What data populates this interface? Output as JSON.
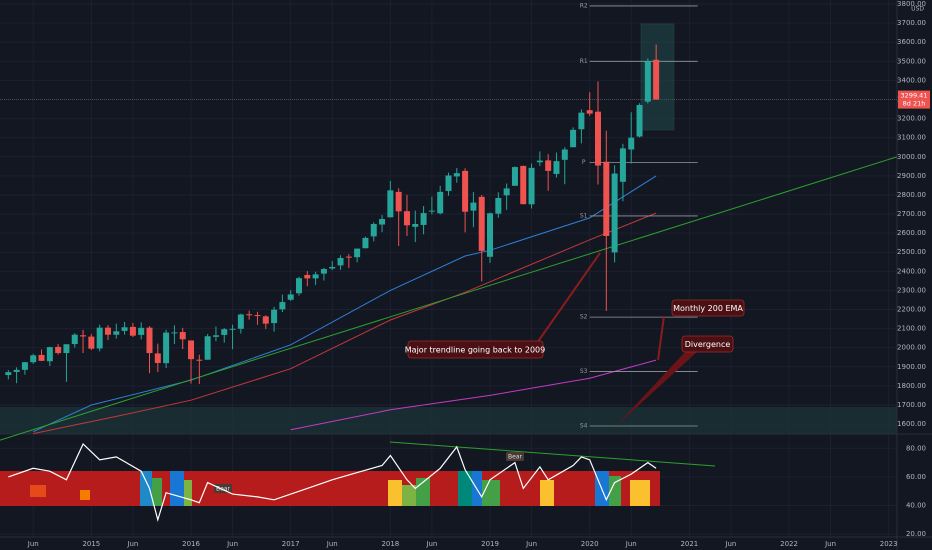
{
  "chart_data": [
    {
      "type": "candlestick",
      "currency": "USD",
      "countdown": "8d 21h",
      "last_price": {
        "value": 3299.41,
        "label": "3299.41"
      },
      "up_color": "#26a69a",
      "down_color": "#ef5350",
      "xlim": [
        "2014-02",
        "2023-02"
      ],
      "ylim": [
        1548,
        3821
      ],
      "yticks": [
        {
          "value": 1600,
          "label": "1600.00"
        },
        {
          "value": 1700,
          "label": "1700.00"
        },
        {
          "value": 1800,
          "label": "1800.00"
        },
        {
          "value": 1900,
          "label": "1900.00"
        },
        {
          "value": 2000,
          "label": "2000.00"
        },
        {
          "value": 2100,
          "label": "2100.00"
        },
        {
          "value": 2200,
          "label": "2200.00"
        },
        {
          "value": 2300,
          "label": "2300.00"
        },
        {
          "value": 2400,
          "label": "2400.00"
        },
        {
          "value": 2500,
          "label": "2500.00"
        },
        {
          "value": 2600,
          "label": "2600.00"
        },
        {
          "value": 2700,
          "label": "2700.00"
        },
        {
          "value": 2800,
          "label": "2800.00"
        },
        {
          "value": 2900,
          "label": "2900.00"
        },
        {
          "value": 3000,
          "label": "3000.00"
        },
        {
          "value": 3100,
          "label": "3100.00"
        },
        {
          "value": 3200,
          "label": "3200.00"
        },
        {
          "value": 3300,
          "label": "3300.00"
        },
        {
          "value": 3400,
          "label": "3400.00"
        },
        {
          "value": 3500,
          "label": "3500.00"
        },
        {
          "value": 3600,
          "label": "3600.00"
        },
        {
          "value": 3700,
          "label": "3700.00"
        },
        {
          "value": 3800,
          "label": "3800.00"
        }
      ],
      "xticks": [
        {
          "value": "2014-06",
          "label": "Jun"
        },
        {
          "value": "2015-01",
          "label": "2015"
        },
        {
          "value": "2015-06",
          "label": "Jun"
        },
        {
          "value": "2016-01",
          "label": "2016"
        },
        {
          "value": "2016-06",
          "label": "Jun"
        },
        {
          "value": "2017-01",
          "label": "2017"
        },
        {
          "value": "2017-06",
          "label": "Jun"
        },
        {
          "value": "2018-01",
          "label": "2018"
        },
        {
          "value": "2018-06",
          "label": "Jun"
        },
        {
          "value": "2019-01",
          "label": "2019"
        },
        {
          "value": "2019-06",
          "label": "Jun"
        },
        {
          "value": "2020-01",
          "label": "2020"
        },
        {
          "value": "2020-06",
          "label": "Jun"
        },
        {
          "value": "2021-01",
          "label": "2021"
        },
        {
          "value": "2021-06",
          "label": "Jun"
        },
        {
          "value": "2022-01",
          "label": "2022"
        },
        {
          "value": "2022-06",
          "label": "Jun"
        },
        {
          "value": "2023-01",
          "label": "2023"
        }
      ],
      "grid": true,
      "x": [
        "2014-03",
        "2014-04",
        "2014-05",
        "2014-06",
        "2014-07",
        "2014-08",
        "2014-09",
        "2014-10",
        "2014-11",
        "2014-12",
        "2015-01",
        "2015-02",
        "2015-03",
        "2015-04",
        "2015-05",
        "2015-06",
        "2015-07",
        "2015-08",
        "2015-09",
        "2015-10",
        "2015-11",
        "2015-12",
        "2016-01",
        "2016-02",
        "2016-03",
        "2016-04",
        "2016-05",
        "2016-06",
        "2016-07",
        "2016-08",
        "2016-09",
        "2016-10",
        "2016-11",
        "2016-12",
        "2017-01",
        "2017-02",
        "2017-03",
        "2017-04",
        "2017-05",
        "2017-06",
        "2017-07",
        "2017-08",
        "2017-09",
        "2017-10",
        "2017-11",
        "2017-12",
        "2018-01",
        "2018-02",
        "2018-03",
        "2018-04",
        "2018-05",
        "2018-06",
        "2018-07",
        "2018-08",
        "2018-09",
        "2018-10",
        "2018-11",
        "2018-12",
        "2019-01",
        "2019-02",
        "2019-03",
        "2019-04",
        "2019-05",
        "2019-06",
        "2019-07",
        "2019-08",
        "2019-09",
        "2019-10",
        "2019-11",
        "2019-12",
        "2020-01",
        "2020-02",
        "2020-03",
        "2020-04",
        "2020-05",
        "2020-06",
        "2020-07",
        "2020-08",
        "2020-09"
      ],
      "open": [
        1857,
        1873,
        1884,
        1924,
        1962,
        1929,
        2004,
        1972,
        2019,
        2065,
        2058,
        1996,
        2105,
        2068,
        2088,
        2109,
        2067,
        2105,
        1970,
        1919,
        2080,
        2082,
        2038,
        1937,
        1937,
        2057,
        2067,
        2094,
        2099,
        2175,
        2171,
        2164,
        2129,
        2201,
        2251,
        2285,
        2381,
        2363,
        2388,
        2415,
        2431,
        2477,
        2474,
        2521,
        2583,
        2645,
        2683,
        2816,
        2715,
        2633,
        2643,
        2718,
        2704,
        2821,
        2897,
        2926,
        2718,
        2790,
        2476,
        2702,
        2798,
        2848,
        2952,
        2751,
        2971,
        2981,
        2910,
        2984,
        3050,
        3144,
        3244,
        3236,
        2974,
        2499,
        2869,
        3038,
        3106,
        3289,
        3508
      ],
      "high": [
        1883,
        1897,
        1924,
        1968,
        1991,
        2005,
        2019,
        2018,
        2076,
        2093,
        2072,
        2120,
        2118,
        2126,
        2135,
        2130,
        2133,
        2113,
        2021,
        2094,
        2117,
        2104,
        2038,
        1963,
        2072,
        2111,
        2103,
        2121,
        2178,
        2194,
        2188,
        2170,
        2214,
        2278,
        2301,
        2371,
        2401,
        2398,
        2418,
        2454,
        2484,
        2491,
        2519,
        2582,
        2657,
        2695,
        2873,
        2835,
        2801,
        2718,
        2742,
        2791,
        2848,
        2917,
        2941,
        2940,
        2815,
        2800,
        2708,
        2814,
        2860,
        2949,
        2954,
        2964,
        3028,
        3014,
        3022,
        3050,
        3154,
        3248,
        3338,
        3394,
        3136,
        2955,
        3068,
        3233,
        3280,
        3515,
        3588
      ],
      "low": [
        1834,
        1814,
        1859,
        1915,
        1930,
        1904,
        1964,
        1821,
        2001,
        1972,
        1988,
        1981,
        2040,
        2048,
        2068,
        2056,
        2044,
        1867,
        1872,
        1893,
        2019,
        1993,
        1812,
        1810,
        1937,
        2034,
        2026,
        1992,
        2074,
        2147,
        2120,
        2098,
        2084,
        2187,
        2245,
        2272,
        2322,
        2329,
        2352,
        2406,
        2408,
        2417,
        2447,
        2520,
        2557,
        2605,
        2682,
        2533,
        2585,
        2553,
        2594,
        2698,
        2698,
        2796,
        2864,
        2604,
        2631,
        2347,
        2444,
        2681,
        2722,
        2848,
        2750,
        2729,
        2952,
        2822,
        2891,
        2856,
        3050,
        3070,
        3214,
        2855,
        2192,
        2447,
        2767,
        2965,
        3101,
        3279,
        3301
      ],
      "close": [
        1872,
        1884,
        1924,
        1960,
        1931,
        2003,
        1972,
        2018,
        2068,
        2059,
        1995,
        2105,
        2068,
        2086,
        2107,
        2063,
        2104,
        1972,
        1920,
        2079,
        2080,
        2044,
        1940,
        1932,
        2060,
        2065,
        2097,
        2099,
        2174,
        2171,
        2168,
        2126,
        2199,
        2239,
        2279,
        2364,
        2363,
        2384,
        2412,
        2423,
        2470,
        2472,
        2519,
        2575,
        2648,
        2674,
        2824,
        2714,
        2641,
        2648,
        2705,
        2718,
        2816,
        2902,
        2914,
        2712,
        2760,
        2507,
        2704,
        2784,
        2834,
        2946,
        2752,
        2942,
        2980,
        2926,
        2977,
        3038,
        3141,
        3231,
        3226,
        2954,
        2585,
        2912,
        3044,
        3100,
        3271,
        3500,
        3299.41
      ],
      "lines": [
        {
          "color": "#2f7fd6",
          "x": [
            "2014-06",
            "2015-01",
            "2016-01",
            "2017-01",
            "2018-01",
            "2018-10",
            "2019-01",
            "2020-01",
            "2020-09"
          ],
          "values": [
            1560,
            1700,
            1830,
            2015,
            2300,
            2480,
            2510,
            2680,
            2900
          ]
        },
        {
          "color": "#c2393b",
          "x": [
            "2014-06",
            "2015-04",
            "2016-01",
            "2017-01",
            "2018-01",
            "2018-10",
            "2019-01",
            "2020-01",
            "2020-09"
          ],
          "values": [
            1550,
            1640,
            1725,
            1890,
            2145,
            2290,
            2345,
            2565,
            2705
          ]
        },
        {
          "color": "#c23cc8",
          "x": [
            "2017-01",
            "2018-01",
            "2019-01",
            "2020-01",
            "2020-09"
          ],
          "values": [
            1570,
            1675,
            1750,
            1840,
            1935
          ]
        },
        {
          "color": "#2da12d",
          "x": [
            "2014-02",
            "2023-02"
          ],
          "values": [
            1516,
            3000
          ]
        }
      ],
      "levels_x": [
        "2020-01",
        "2021-02"
      ],
      "levels": [
        {
          "label": "R2",
          "value": 3790
        },
        {
          "label": "R1",
          "value": 3500
        },
        {
          "label": "P",
          "value": 2970
        },
        {
          "label": "S1",
          "value": 2690
        },
        {
          "label": "S2",
          "value": 2160
        },
        {
          "label": "S3",
          "value": 1875
        },
        {
          "label": "S4",
          "value": 1590
        }
      ],
      "annotations": [
        "Major trendline going back to 2009",
        "Monthly 200 EMA",
        "Divergence"
      ]
    },
    {
      "type": "line",
      "color": "#ffffff",
      "ylim": [
        18,
        90
      ],
      "yticks": [
        {
          "value": 20,
          "label": "20.00"
        },
        {
          "value": 40,
          "label": "40.00"
        },
        {
          "value": 60,
          "label": "60.00"
        },
        {
          "value": 80,
          "label": "80.00"
        }
      ],
      "x": [
        "2014-03",
        "2014-06",
        "2014-08",
        "2014-10",
        "2014-12",
        "2015-02",
        "2015-04",
        "2015-07",
        "2015-08",
        "2015-09",
        "2015-10",
        "2016-01",
        "2016-02",
        "2016-03",
        "2016-06",
        "2016-09",
        "2016-11",
        "2016-12",
        "2017-03",
        "2017-06",
        "2017-09",
        "2017-12",
        "2018-01",
        "2018-03",
        "2018-04",
        "2018-07",
        "2018-09",
        "2018-10",
        "2018-12",
        "2019-01",
        "2019-04",
        "2019-05",
        "2019-07",
        "2019-08",
        "2019-11",
        "2019-12",
        "2020-01",
        "2020-02",
        "2020-03",
        "2020-04",
        "2020-06",
        "2020-08",
        "2020-09"
      ],
      "values": [
        60,
        66,
        64,
        58,
        83,
        72,
        74,
        64,
        52,
        30,
        49,
        44,
        42,
        56,
        48,
        46,
        44,
        46,
        52,
        58,
        63,
        68,
        75,
        58,
        52,
        66,
        81,
        65,
        46,
        58,
        70,
        52,
        67,
        58,
        68,
        74,
        72,
        58,
        44,
        56,
        62,
        70,
        66
      ],
      "annotations": [
        "Bear",
        "Bear"
      ]
    }
  ]
}
